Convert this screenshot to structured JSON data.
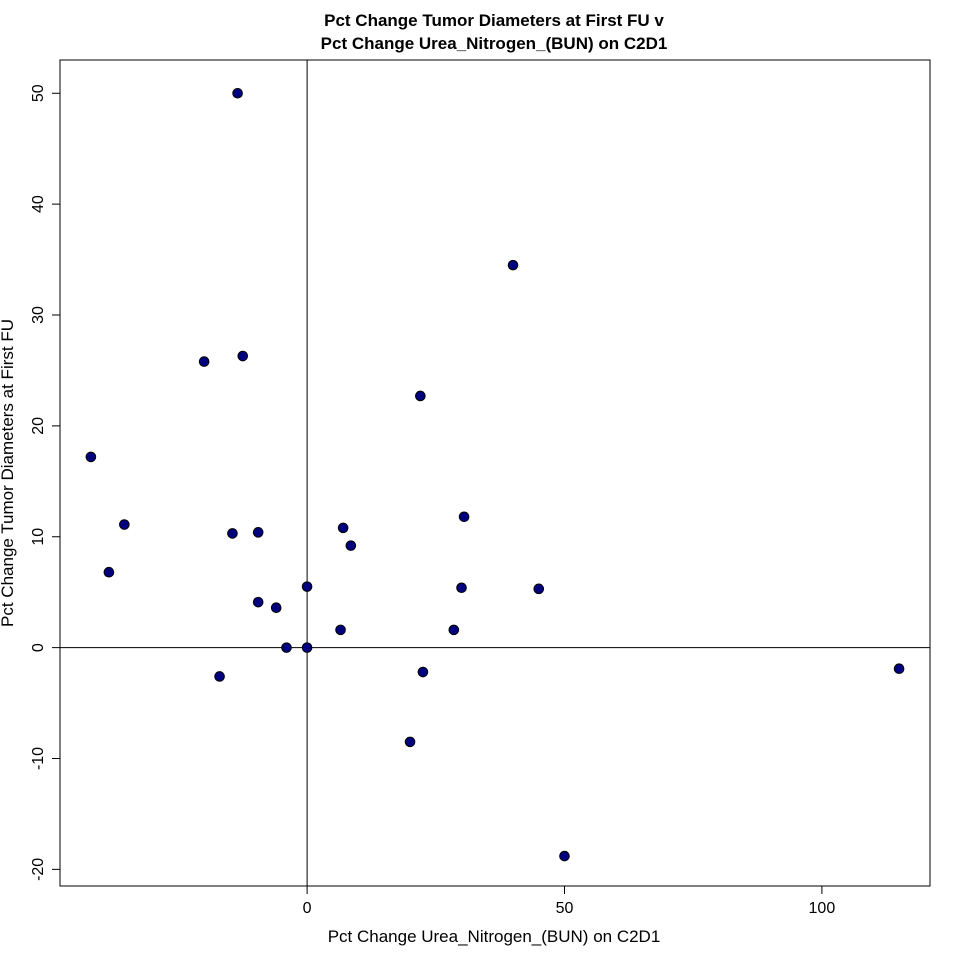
{
  "chart_data": {
    "type": "scatter",
    "title": "Pct Change Tumor Diameters at First FU v",
    "subtitle": "Pct Change Urea_Nitrogen_(BUN) on C2D1",
    "xlabel": "Pct Change Urea_Nitrogen_(BUN) on C2D1",
    "ylabel": "Pct Change Tumor Diameters at First FU",
    "xlim": [
      -48,
      121
    ],
    "ylim": [
      -21.5,
      53
    ],
    "xticks": [
      0,
      50,
      100
    ],
    "yticks": [
      -20,
      -10,
      0,
      10,
      20,
      30,
      40,
      50
    ],
    "reference_lines": {
      "x": 0,
      "y": 0
    },
    "grid": false,
    "colors": {
      "point": "#00007f",
      "axis": "#000000"
    },
    "points": [
      {
        "x": -42,
        "y": 17.2
      },
      {
        "x": -38.5,
        "y": 6.8
      },
      {
        "x": -35.5,
        "y": 11.1
      },
      {
        "x": -20,
        "y": 25.8
      },
      {
        "x": -17,
        "y": -2.6
      },
      {
        "x": -14.5,
        "y": 10.3
      },
      {
        "x": -13.5,
        "y": 50
      },
      {
        "x": -12.5,
        "y": 26.3
      },
      {
        "x": -9.5,
        "y": 10.4
      },
      {
        "x": -9.5,
        "y": 4.1
      },
      {
        "x": -6,
        "y": 3.6
      },
      {
        "x": -4,
        "y": 0
      },
      {
        "x": 0,
        "y": 0
      },
      {
        "x": 0,
        "y": 5.5
      },
      {
        "x": 6.5,
        "y": 1.6
      },
      {
        "x": 7,
        "y": 10.8
      },
      {
        "x": 8.5,
        "y": 9.2
      },
      {
        "x": 20,
        "y": -8.5
      },
      {
        "x": 22,
        "y": 22.7
      },
      {
        "x": 22.5,
        "y": -2.2
      },
      {
        "x": 28.5,
        "y": 1.6
      },
      {
        "x": 30,
        "y": 5.4
      },
      {
        "x": 30.5,
        "y": 11.8
      },
      {
        "x": 40,
        "y": 34.5
      },
      {
        "x": 45,
        "y": 5.3
      },
      {
        "x": 50,
        "y": -18.8
      },
      {
        "x": 115,
        "y": -1.9
      }
    ]
  }
}
